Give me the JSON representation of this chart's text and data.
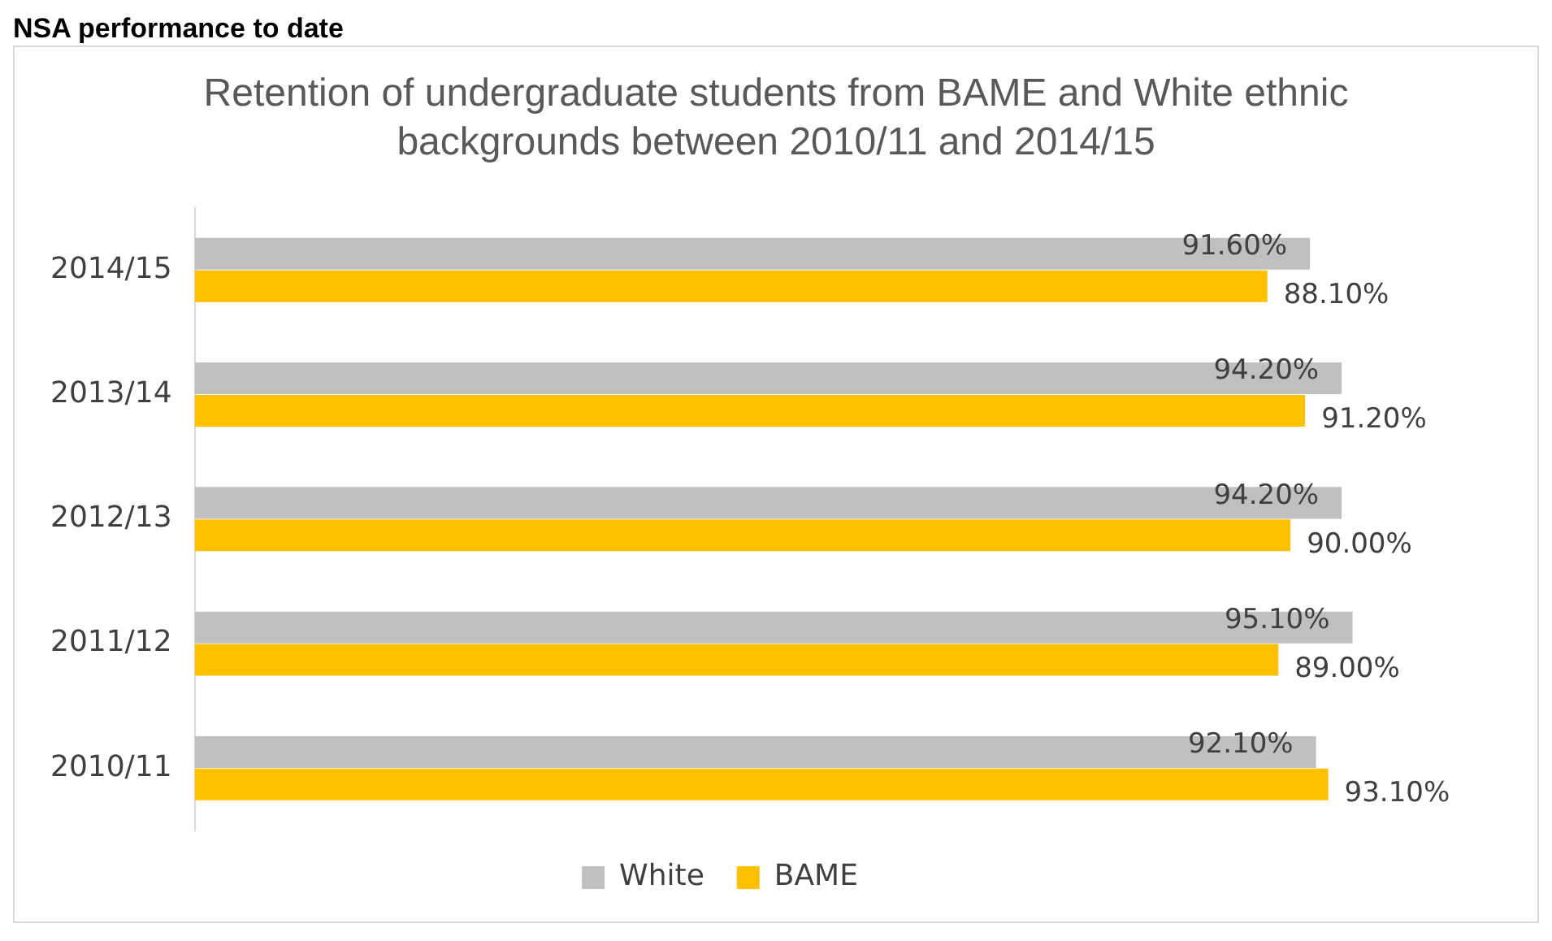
{
  "chart_data": {
    "type": "bar",
    "orientation": "horizontal",
    "title": "Retention of undergraduate students from BAME and White ethnic backgrounds between 2010/11 and 2014/15",
    "annotations": [
      "NSA performance to date"
    ],
    "categories": [
      "2014/15",
      "2013/14",
      "2012/13",
      "2011/12",
      "2010/11"
    ],
    "series": [
      {
        "name": "White",
        "color": "#c0c0c0",
        "values": [
          91.6,
          94.2,
          94.2,
          95.1,
          92.1
        ],
        "value_labels": [
          "91.60%",
          "94.20%",
          "94.20%",
          "95.10%",
          "92.10%"
        ]
      },
      {
        "name": "BAME",
        "color": "#ffc000",
        "values": [
          88.1,
          91.2,
          90.0,
          89.0,
          93.1
        ],
        "value_labels": [
          "88.10%",
          "91.20%",
          "90.00%",
          "89.00%",
          "93.10%"
        ]
      }
    ],
    "tick_labels": "y",
    "grid": false,
    "legend": "bottom"
  }
}
